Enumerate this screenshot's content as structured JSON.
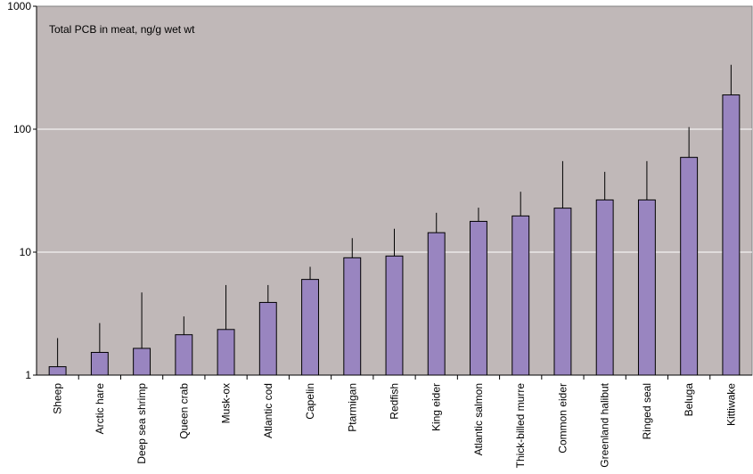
{
  "chart_data": {
    "type": "bar",
    "title": "Total PCB in meat, ng/g wet wt",
    "xlabel": "",
    "ylabel": "",
    "yscale": "log",
    "ylim": [
      1,
      1000
    ],
    "yticks": [
      1,
      10,
      100,
      1000
    ],
    "ytick_labels": [
      "1",
      "10",
      "100",
      "1000"
    ],
    "grid": true,
    "categories": [
      "Sheep",
      "Arctic hare",
      "Deep sea shrimp",
      "Queen crab",
      "Musk-ox",
      "Atlantic cod",
      "Capelin",
      "Ptarmigan",
      "Redfish",
      "King eider",
      "Atlantic salmon",
      "Thick-billed murre",
      "Common eider",
      "Greenland halibut",
      "Ringed seal",
      "Beluga",
      "Kittiwake"
    ],
    "values": [
      1.17,
      1.53,
      1.65,
      2.13,
      2.35,
      3.9,
      6.0,
      9.0,
      9.3,
      14.4,
      17.8,
      19.7,
      22.8,
      26.6,
      26.6,
      59.0,
      190.0
    ],
    "error_upper": [
      2.0,
      2.65,
      4.7,
      3.0,
      5.4,
      5.4,
      7.6,
      13.0,
      15.5,
      20.9,
      23.0,
      31.0,
      55.0,
      45.0,
      55.0,
      104.0,
      334.0
    ],
    "colors": {
      "plot_background": "#c0b8b8",
      "bar_fill": "#9985c0",
      "bar_stroke": "#000000",
      "gridline": "#ffffff"
    }
  }
}
